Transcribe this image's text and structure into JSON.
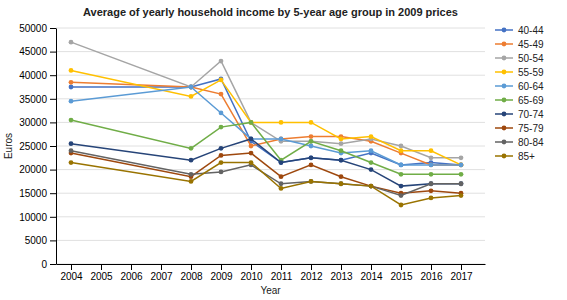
{
  "chart_data": {
    "type": "line",
    "title": "Average of yearly household income by 5-year age group in 2009 prices",
    "xlabel": "Year",
    "ylabel": "Euros",
    "x": [
      2004,
      2008,
      2009,
      2010,
      2011,
      2012,
      2013,
      2014,
      2015,
      2016,
      2017
    ],
    "xlim": [
      2003.5,
      2017.8
    ],
    "xticks": [
      2004,
      2005,
      2006,
      2007,
      2008,
      2009,
      2010,
      2011,
      2012,
      2013,
      2014,
      2015,
      2016,
      2017
    ],
    "ylim": [
      0,
      50000
    ],
    "yticks": [
      0,
      5000,
      10000,
      15000,
      20000,
      25000,
      30000,
      35000,
      40000,
      45000,
      50000
    ],
    "grid": "y",
    "legend": "right",
    "series": [
      {
        "name": "40-44",
        "color": "#4472C4",
        "marker": "circle",
        "values": [
          37500,
          37500,
          39200,
          26000,
          21500,
          22500,
          22000,
          23500,
          21000,
          21500,
          21000
        ]
      },
      {
        "name": "45-49",
        "color": "#ED7D31",
        "marker": "circle",
        "values": [
          38500,
          37500,
          36000,
          25000,
          26500,
          27000,
          27000,
          26000,
          23500,
          21000,
          21000
        ]
      },
      {
        "name": "50-54",
        "color": "#A5A5A5",
        "marker": "circle",
        "values": [
          47000,
          37500,
          43000,
          30000,
          26000,
          26000,
          25500,
          26500,
          25000,
          22500,
          22500
        ]
      },
      {
        "name": "55-59",
        "color": "#FFC000",
        "marker": "circle",
        "values": [
          41000,
          35500,
          39000,
          30000,
          30000,
          30000,
          26500,
          27000,
          24000,
          24000,
          21000
        ]
      },
      {
        "name": "60-64",
        "color": "#5B9BD5",
        "marker": "circle",
        "values": [
          34500,
          37500,
          32000,
          26500,
          26500,
          25000,
          23500,
          24000,
          21000,
          21000,
          21000
        ]
      },
      {
        "name": "65-69",
        "color": "#70AD47",
        "marker": "circle",
        "values": [
          30500,
          24500,
          29000,
          30000,
          22000,
          26000,
          24000,
          21500,
          19000,
          19000,
          19000
        ]
      },
      {
        "name": "70-74",
        "color": "#264478",
        "marker": "circle",
        "values": [
          25500,
          22000,
          24500,
          26500,
          21500,
          22500,
          22000,
          20000,
          16500,
          17000,
          17000
        ]
      },
      {
        "name": "75-79",
        "color": "#9E480E",
        "marker": "circle",
        "values": [
          23500,
          18500,
          23000,
          23500,
          18500,
          21000,
          18500,
          16500,
          15000,
          15500,
          15000
        ]
      },
      {
        "name": "80-84",
        "color": "#636363",
        "marker": "circle",
        "values": [
          24000,
          19000,
          19500,
          21000,
          17000,
          17500,
          17000,
          16500,
          14500,
          17000,
          17000
        ]
      },
      {
        "name": "85+",
        "color": "#997300",
        "marker": "circle",
        "values": [
          21500,
          17500,
          21500,
          21500,
          16000,
          17500,
          17000,
          16500,
          12500,
          14000,
          14500
        ]
      }
    ]
  }
}
